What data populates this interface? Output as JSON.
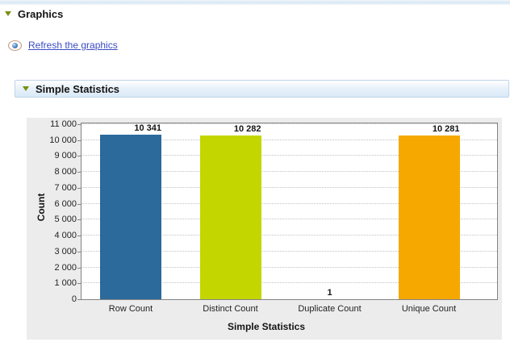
{
  "graphics_section": {
    "title": "Graphics",
    "refresh_link": "Refresh the graphics"
  },
  "simple_statistics_section": {
    "title": "Simple Statistics"
  },
  "colors": {
    "row_count_bar": "#2B6A9B",
    "distinct_count_bar": "#C3D600",
    "unique_count_bar": "#F6A800",
    "link": "#3A4CC5",
    "section_twistie": "#7B8E12",
    "panel_background": "#ECECEC"
  },
  "chart_data": {
    "type": "bar",
    "title": "",
    "categories": [
      "Row Count",
      "Distinct Count",
      "Duplicate Count",
      "Unique Count"
    ],
    "values": [
      10341,
      10282,
      1,
      10281
    ],
    "value_labels": [
      "10 341",
      "10 282",
      "1",
      "10 281"
    ],
    "bar_colors": [
      "#2B6A9B",
      "#C3D600",
      null,
      "#F6A800"
    ],
    "xlabel": "Simple Statistics",
    "ylabel": "Count",
    "ylim": [
      0,
      11000
    ],
    "y_ticks": [
      0,
      1000,
      2000,
      3000,
      4000,
      5000,
      6000,
      7000,
      8000,
      9000,
      10000,
      11000
    ],
    "y_tick_labels": [
      "0",
      "1 000",
      "2 000",
      "3 000",
      "4 000",
      "5 000",
      "6 000",
      "7 000",
      "8 000",
      "9 000",
      "10 000",
      "11 000"
    ],
    "grid": "horizontal-dotted",
    "legend": "none"
  }
}
